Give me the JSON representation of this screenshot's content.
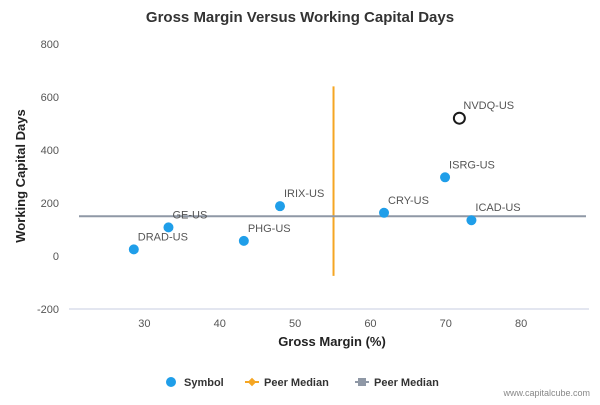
{
  "chart_data": {
    "type": "scatter",
    "title": "Gross Margin Versus Working Capital Days",
    "xlabel": "Gross Margin (%)",
    "ylabel": "Working Capital Days",
    "xlim": [
      20,
      89
    ],
    "ylim": [
      -200,
      800
    ],
    "xticks": [
      30,
      40,
      50,
      60,
      70,
      80
    ],
    "yticks": [
      -200,
      0,
      200,
      400,
      600,
      800
    ],
    "grid": false,
    "legend_position": "bottom",
    "points": [
      {
        "label": "DRAD-US",
        "x": 28.6,
        "y": 25,
        "highlight": false
      },
      {
        "label": "GE-US",
        "x": 33.2,
        "y": 108,
        "highlight": false
      },
      {
        "label": "PHG-US",
        "x": 43.2,
        "y": 57,
        "highlight": false
      },
      {
        "label": "IRIX-US",
        "x": 48.0,
        "y": 188,
        "highlight": false
      },
      {
        "label": "CRY-US",
        "x": 61.8,
        "y": 163,
        "highlight": false
      },
      {
        "label": "ISRG-US",
        "x": 69.9,
        "y": 297,
        "highlight": false
      },
      {
        "label": "ICAD-US",
        "x": 73.4,
        "y": 135,
        "highlight": false
      },
      {
        "label": "NVDQ-US",
        "x": 71.8,
        "y": 520,
        "highlight": true
      }
    ],
    "peer_median_x": {
      "value": 55.1,
      "y_range": [
        -75,
        640
      ]
    },
    "peer_median_y": {
      "value": 150
    },
    "legend": [
      {
        "name": "Symbol",
        "kind": "dot",
        "color": "#1f9ee9"
      },
      {
        "name": "Peer Median",
        "kind": "vline",
        "color": "#f5a623"
      },
      {
        "name": "Peer Median",
        "kind": "hline",
        "color": "#8f98a6"
      }
    ],
    "colors": {
      "dot": "#1f9ee9",
      "highlight_stroke": "#1a1a1a",
      "median_x": "#f5a623",
      "median_y": "#8f98a6",
      "axis": "#c7cde0",
      "text": "#555555"
    }
  },
  "watermark": "www.capitalcube.com"
}
